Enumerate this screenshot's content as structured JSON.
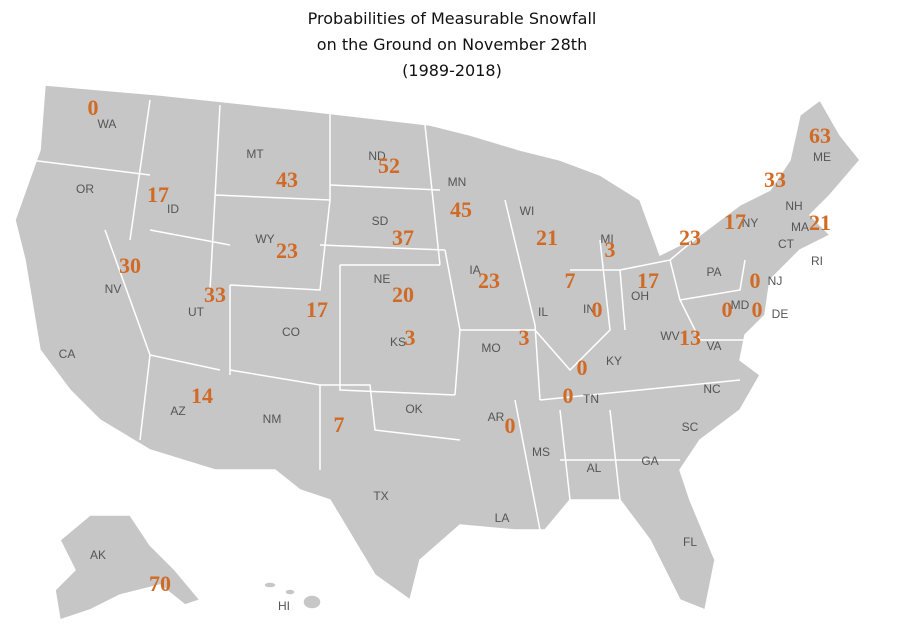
{
  "title": [
    "Probabilities of Measurable Snowfall",
    "on the Ground on November 28th",
    "(1989-2018)"
  ],
  "states": [
    {
      "label": "WA",
      "value": 0
    },
    {
      "label": "OR"
    },
    {
      "label": "ID",
      "value": 17
    },
    {
      "label": "MT",
      "value": 43
    },
    {
      "label": "ND",
      "value": 52
    },
    {
      "label": "MN",
      "value": 45
    },
    {
      "label": "WI",
      "value": 21
    },
    {
      "label": "MI",
      "value": 3
    },
    {
      "label": "SD",
      "value": 37
    },
    {
      "label": "WY",
      "value": 23
    },
    {
      "label": "NE",
      "value": 20
    },
    {
      "label": "IA",
      "value": 23
    },
    {
      "label": "IL",
      "value": 7
    },
    {
      "label": "IN",
      "value": 0
    },
    {
      "label": "OH",
      "value": 17
    },
    {
      "label": "PA",
      "value": 23
    },
    {
      "label": "NY",
      "value": 17
    },
    {
      "label": "NH",
      "value": 33
    },
    {
      "label": "ME",
      "value": 63
    },
    {
      "label": "MA",
      "value": 21
    },
    {
      "label": "CT"
    },
    {
      "label": "RI"
    },
    {
      "label": "NJ",
      "value": 0
    },
    {
      "label": "MD",
      "value": 0
    },
    {
      "label": "DE",
      "value": 0
    },
    {
      "label": "NV",
      "value": 30
    },
    {
      "label": "UT",
      "value": 33
    },
    {
      "label": "CO",
      "value": 17
    },
    {
      "label": "KS",
      "value": 3
    },
    {
      "label": "MO",
      "value": 3
    },
    {
      "label": "KY",
      "value": 0
    },
    {
      "label": "TN",
      "value": 0
    },
    {
      "label": "WV"
    },
    {
      "label": "VA",
      "value": 13
    },
    {
      "label": "CA"
    },
    {
      "label": "AZ",
      "value": 14
    },
    {
      "label": "NM"
    },
    {
      "label": "TX",
      "value": 7
    },
    {
      "label": "OK"
    },
    {
      "label": "AR",
      "value": 0
    },
    {
      "label": "MS"
    },
    {
      "label": "AL"
    },
    {
      "label": "GA"
    },
    {
      "label": "SC"
    },
    {
      "label": "NC"
    },
    {
      "label": "FL"
    },
    {
      "label": "LA"
    },
    {
      "label": "AK",
      "value": 70
    },
    {
      "label": "HI"
    }
  ]
}
